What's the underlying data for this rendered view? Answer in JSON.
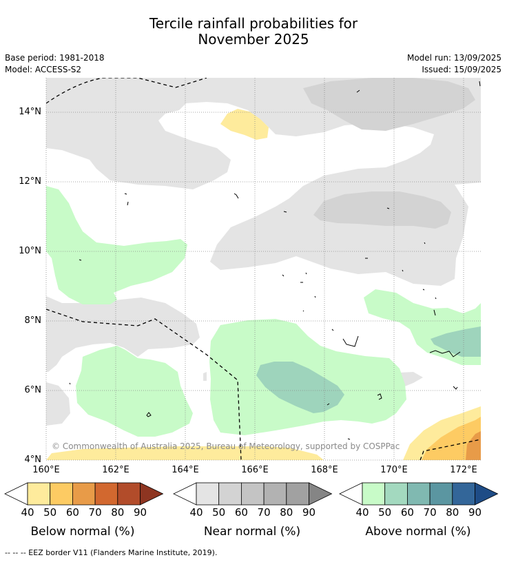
{
  "title": {
    "line1": "Tercile rainfall probabilities for",
    "line2": "November 2025"
  },
  "meta": {
    "base_period": "Base period: 1981-2018",
    "model": "Model: ACCESS-S2",
    "model_run": "Model run: 13/09/2025",
    "issued": "Issued: 15/09/2025"
  },
  "map": {
    "lat_labels": [
      "14°N",
      "12°N",
      "10°N",
      "8°N",
      "6°N",
      "4°N"
    ],
    "lon_labels": [
      "160°E",
      "162°E",
      "164°E",
      "166°E",
      "168°E",
      "170°E",
      "172°E"
    ],
    "copyright": "© Commonwealth of Australia 2025, Bureau of Meteorology, supported by COSPPac",
    "colors": {
      "near_40": "#e4e4e4",
      "near_50": "#d3d3d3",
      "above_40": "#c8fbc8",
      "above_50": "#9ed4bc",
      "above_60": "#82b8b0",
      "below_40": "#feeb9c",
      "below_50": "#fdcb63",
      "below_60": "#e89b48",
      "grid": "#888888",
      "eez": "#000000"
    }
  },
  "colorbars": [
    {
      "title": "Below normal (%)",
      "ticks": [
        "40",
        "50",
        "60",
        "70",
        "80",
        "90"
      ],
      "colors": [
        "#feeb9c",
        "#fdcb63",
        "#e89b48",
        "#d2682f",
        "#b24c2a",
        "#8e3521"
      ]
    },
    {
      "title": "Near normal (%)",
      "ticks": [
        "40",
        "50",
        "60",
        "70",
        "80",
        "90"
      ],
      "colors": [
        "#e4e4e4",
        "#d3d3d3",
        "#c4c4c4",
        "#b2b2b2",
        "#a1a1a1",
        "#858585"
      ]
    },
    {
      "title": "Above normal (%)",
      "ticks": [
        "40",
        "50",
        "60",
        "70",
        "80",
        "90"
      ],
      "colors": [
        "#c8fbc8",
        "#a3d9bf",
        "#80b9b1",
        "#5b96a1",
        "#336699",
        "#1e4c86"
      ]
    }
  ],
  "footnote": "--  --  -- EEZ border V11 (Flanders Marine Institute, 2019)."
}
